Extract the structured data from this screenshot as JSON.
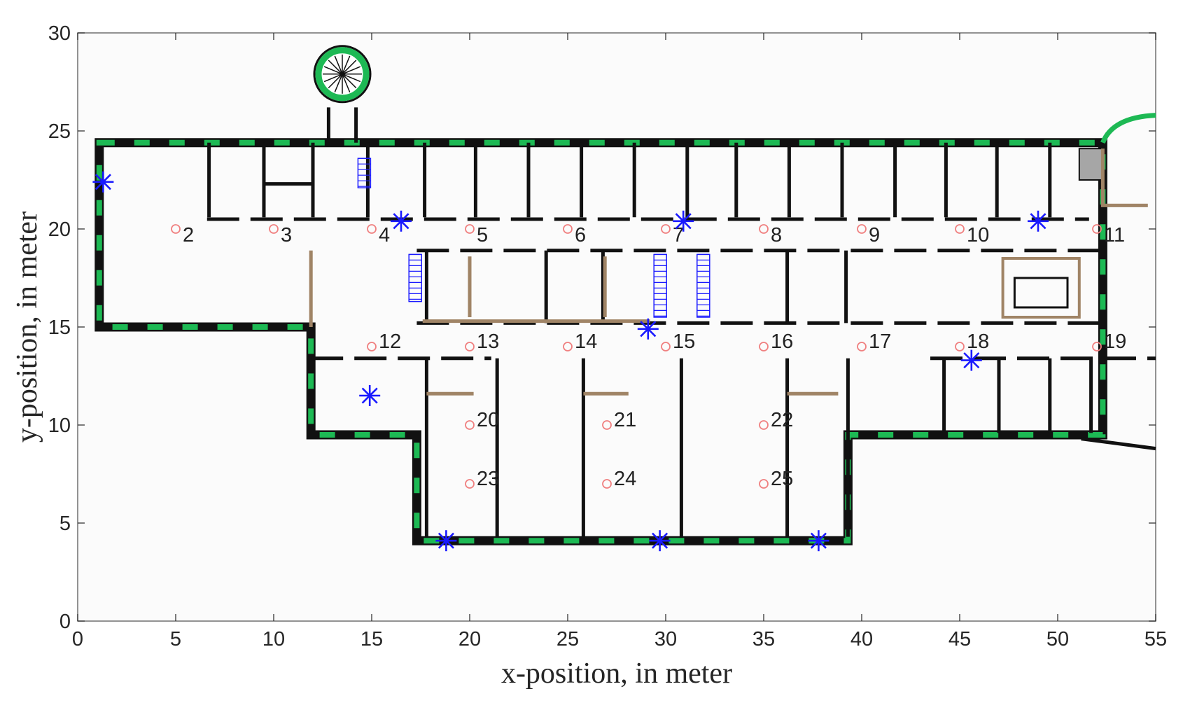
{
  "chart_data": {
    "type": "scatter",
    "title": "",
    "xlabel": "x-position, in meter",
    "ylabel": "y-position, in meter",
    "xlim": [
      0,
      55
    ],
    "ylim": [
      0,
      30
    ],
    "xticks": [
      "0",
      "5",
      "10",
      "15",
      "20",
      "25",
      "30",
      "35",
      "40",
      "45",
      "50",
      "55"
    ],
    "yticks": [
      "0",
      "5",
      "10",
      "15",
      "20",
      "25",
      "30"
    ],
    "grid": false,
    "colors": {
      "measurement_points": "#f08080",
      "transmitters": "#1a1aff",
      "exterior_wall": "#1db954",
      "interior_wall": "#111111",
      "partition": "#a08466",
      "fixtures": "#1a1aff"
    },
    "series": [
      {
        "marker": "circle",
        "points": [
          {
            "label": "2",
            "x": 5,
            "y": 20
          },
          {
            "label": "3",
            "x": 10,
            "y": 20
          },
          {
            "label": "4",
            "x": 15,
            "y": 20
          },
          {
            "label": "5",
            "x": 20,
            "y": 20
          },
          {
            "label": "6",
            "x": 25,
            "y": 20
          },
          {
            "label": "7",
            "x": 30,
            "y": 20
          },
          {
            "label": "8",
            "x": 35,
            "y": 20
          },
          {
            "label": "9",
            "x": 40,
            "y": 20
          },
          {
            "label": "10",
            "x": 45,
            "y": 20
          },
          {
            "label": "11",
            "x": 52,
            "y": 20
          },
          {
            "label": "12",
            "x": 15,
            "y": 14
          },
          {
            "label": "13",
            "x": 20,
            "y": 14
          },
          {
            "label": "14",
            "x": 25,
            "y": 14
          },
          {
            "label": "15",
            "x": 30,
            "y": 14
          },
          {
            "label": "16",
            "x": 35,
            "y": 14
          },
          {
            "label": "17",
            "x": 40,
            "y": 14
          },
          {
            "label": "18",
            "x": 45,
            "y": 14
          },
          {
            "label": "19",
            "x": 52,
            "y": 14
          },
          {
            "label": "20",
            "x": 20,
            "y": 10
          },
          {
            "label": "21",
            "x": 27,
            "y": 10
          },
          {
            "label": "22",
            "x": 35,
            "y": 10
          },
          {
            "label": "23",
            "x": 20,
            "y": 7
          },
          {
            "label": "24",
            "x": 27,
            "y": 7
          },
          {
            "label": "25",
            "x": 35,
            "y": 7
          }
        ]
      },
      {
        "marker": "asterisk",
        "points": [
          {
            "x": 1.3,
            "y": 22.4
          },
          {
            "x": 16.5,
            "y": 20.4
          },
          {
            "x": 30.9,
            "y": 20.4
          },
          {
            "x": 49.0,
            "y": 20.4
          },
          {
            "x": 29.1,
            "y": 14.9
          },
          {
            "x": 45.6,
            "y": 13.3
          },
          {
            "x": 14.9,
            "y": 11.5
          },
          {
            "x": 18.8,
            "y": 4.1
          },
          {
            "x": 29.7,
            "y": 4.1
          },
          {
            "x": 37.8,
            "y": 4.1
          }
        ]
      }
    ]
  }
}
